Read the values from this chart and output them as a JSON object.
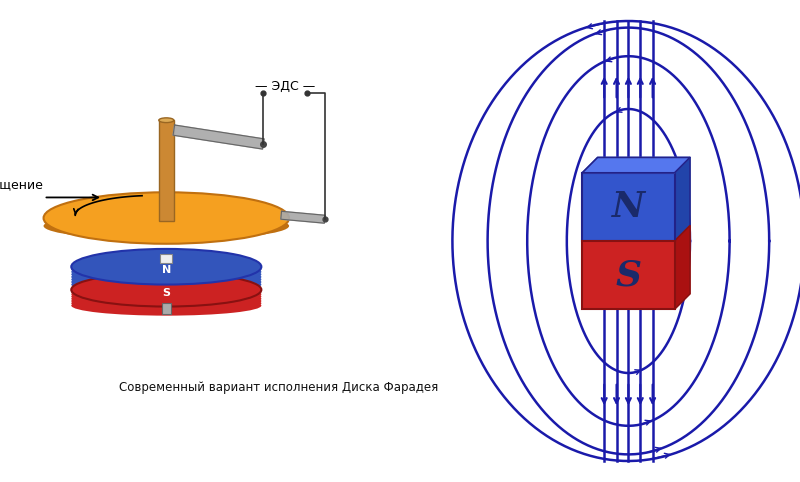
{
  "fig_width": 8.0,
  "fig_height": 4.82,
  "dpi": 100,
  "bg_color": "#ffffff",
  "left_bg": "#ffffff",
  "right_bg": "#cce0f0",
  "caption": "Современный вариант исполнения Диска Фарадея",
  "caption_fontsize": 9,
  "disk_color": "#f5a020",
  "disk_edge_color": "#c07010",
  "disk_shadow_color": "#c07010",
  "magnet_blue": "#3355bb",
  "magnet_red": "#cc2222",
  "magnet_n_label": "N",
  "magnet_s_label": "S",
  "field_line_color": "#1a1aaa",
  "shaft_color": "#cc8833",
  "shaft_edge": "#996622",
  "brush_color": "#aaaaaa",
  "brush_edge": "#666666",
  "wire_color": "#333333"
}
